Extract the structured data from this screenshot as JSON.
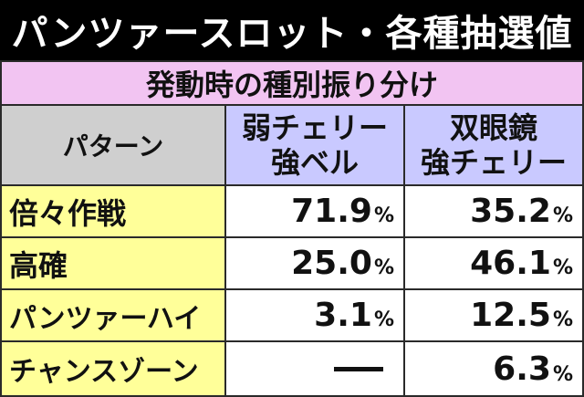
{
  "title": "パンツァースロット・各種抽選値",
  "subtitle": "発動時の種別振り分け",
  "table": {
    "header": {
      "pattern": "パターン",
      "col1_line1": "弱チェリー",
      "col1_line2": "強ベル",
      "col2_line1": "双眼鏡",
      "col2_line2": "強チェリー"
    },
    "rows": [
      {
        "label": "倍々作戦",
        "v1": "71.9",
        "v2": "35.2"
      },
      {
        "label": "高確",
        "v1": "25.0",
        "v2": "46.1"
      },
      {
        "label": "パンツァーハイ",
        "v1": "3.1",
        "v2": "12.5"
      },
      {
        "label": "チャンスゾーン",
        "v1": "",
        "v2": "6.3"
      }
    ],
    "unit": "%",
    "dash_note": "—"
  }
}
